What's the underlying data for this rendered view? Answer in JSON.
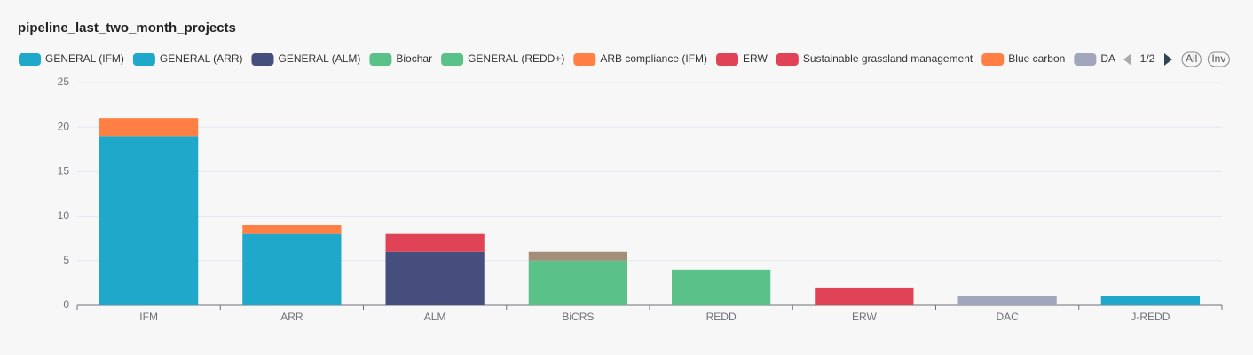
{
  "chart_data": {
    "type": "bar",
    "stacked": true,
    "title": "pipeline_last_two_month_projects",
    "categories": [
      "IFM",
      "ARR",
      "ALM",
      "BiCRS",
      "REDD",
      "ERW",
      "DAC",
      "J-REDD"
    ],
    "series": [
      {
        "name": "GENERAL (IFM)",
        "color": "#1fa8c9",
        "values": [
          19,
          null,
          null,
          null,
          null,
          null,
          null,
          null
        ]
      },
      {
        "name": "GENERAL (ARR)",
        "color": "#1fa8c9",
        "values": [
          null,
          8,
          null,
          null,
          null,
          null,
          null,
          null
        ]
      },
      {
        "name": "GENERAL (ALM)",
        "color": "#454e7c",
        "values": [
          null,
          null,
          6,
          null,
          null,
          null,
          null,
          null
        ]
      },
      {
        "name": "Biochar",
        "color": "#5ac189",
        "values": [
          null,
          null,
          null,
          5,
          null,
          null,
          null,
          null
        ]
      },
      {
        "name": "GENERAL (REDD+)",
        "color": "#5ac189",
        "values": [
          null,
          null,
          null,
          null,
          4,
          null,
          null,
          null
        ]
      },
      {
        "name": "ARB compliance (IFM)",
        "color": "#ff7f44",
        "values": [
          2,
          null,
          null,
          null,
          null,
          null,
          null,
          null
        ]
      },
      {
        "name": "ERW",
        "color": "#e04355",
        "values": [
          null,
          null,
          null,
          null,
          null,
          2,
          null,
          null
        ]
      },
      {
        "name": "Sustainable grassland management",
        "color": "#e04355",
        "values": [
          null,
          null,
          2,
          null,
          null,
          null,
          null,
          null
        ]
      },
      {
        "name": "Blue carbon",
        "color": "#ff7f44",
        "values": [
          null,
          1,
          null,
          null,
          null,
          null,
          null,
          null
        ]
      },
      {
        "name": "DA",
        "color": "#a1a6bd",
        "values": [
          null,
          null,
          null,
          null,
          null,
          null,
          1,
          null
        ]
      },
      {
        "color": "#a38f79",
        "values": [
          null,
          null,
          null,
          1,
          null,
          null,
          null,
          null
        ]
      },
      {
        "color": "#1fa8c9",
        "values": [
          null,
          null,
          null,
          null,
          null,
          null,
          null,
          1
        ]
      }
    ],
    "ylim": [
      0,
      25
    ],
    "yticks": [
      0,
      5,
      10,
      15,
      20,
      25
    ],
    "grid": true,
    "legend_pager": "1/2",
    "legend_buttons": [
      "All",
      "Inv"
    ]
  }
}
